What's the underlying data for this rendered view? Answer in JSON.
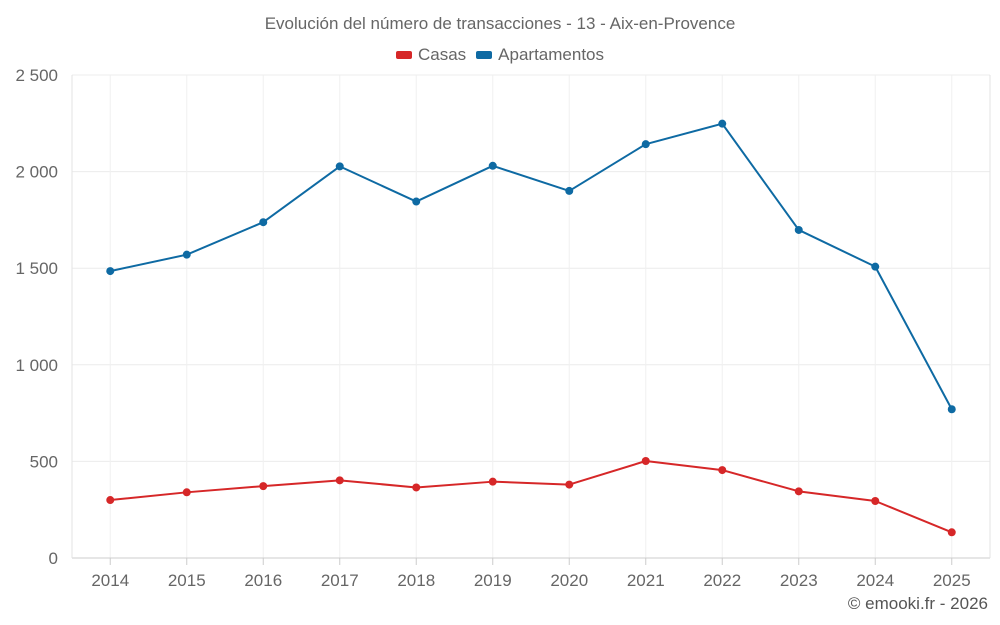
{
  "chart_data": {
    "type": "line",
    "title": "Evolución del número de transacciones - 13 - Aix-en-Provence",
    "xlabel": "",
    "ylabel": "",
    "categories": [
      "2014",
      "2015",
      "2016",
      "2017",
      "2018",
      "2019",
      "2020",
      "2021",
      "2022",
      "2023",
      "2024",
      "2025"
    ],
    "ylim": [
      0,
      2500
    ],
    "yticks": [
      0,
      500,
      1000,
      1500,
      2000,
      2500
    ],
    "ytick_labels": [
      "0",
      "500",
      "1 000",
      "1 500",
      "2 000",
      "2 500"
    ],
    "grid": true,
    "legend_position": "top-center",
    "series": [
      {
        "name": "Casas",
        "color": "#d62728",
        "values": [
          300,
          340,
          372,
          402,
          365,
          395,
          380,
          502,
          455,
          345,
          295,
          133
        ]
      },
      {
        "name": "Apartamentos",
        "color": "#0e6aa3",
        "values": [
          1485,
          1570,
          1738,
          2027,
          1845,
          2030,
          1900,
          2142,
          2248,
          1698,
          1508,
          770
        ]
      }
    ]
  },
  "footer": {
    "copyright": "© emooki.fr - 2026"
  }
}
